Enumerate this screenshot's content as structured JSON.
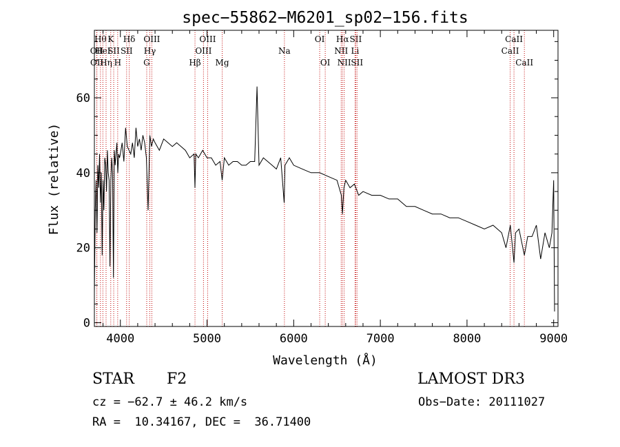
{
  "chart_data": {
    "type": "line",
    "title": "spec−55862−M6201_sp02−156.fits",
    "xlabel": "Wavelength (Å)",
    "ylabel": "Flux (relative)",
    "xlim": [
      3700,
      9050
    ],
    "ylim": [
      -1,
      78
    ],
    "xticks": [
      4000,
      5000,
      6000,
      7000,
      8000,
      9000
    ],
    "yticks": [
      0,
      20,
      40,
      60
    ],
    "grid": false,
    "series": [
      {
        "name": "flux",
        "x": [
          3700,
          3710,
          3720,
          3730,
          3740,
          3750,
          3760,
          3770,
          3780,
          3790,
          3800,
          3810,
          3820,
          3830,
          3840,
          3850,
          3860,
          3870,
          3880,
          3890,
          3900,
          3910,
          3920,
          3930,
          3940,
          3950,
          3960,
          3970,
          3980,
          3990,
          4000,
          4020,
          4040,
          4060,
          4080,
          4100,
          4120,
          4140,
          4160,
          4180,
          4200,
          4220,
          4240,
          4260,
          4280,
          4300,
          4320,
          4340,
          4360,
          4380,
          4400,
          4450,
          4500,
          4550,
          4600,
          4650,
          4700,
          4750,
          4800,
          4850,
          4861,
          4870,
          4900,
          4950,
          5000,
          5050,
          5100,
          5150,
          5175,
          5200,
          5250,
          5300,
          5350,
          5400,
          5450,
          5500,
          5550,
          5577,
          5600,
          5650,
          5700,
          5750,
          5800,
          5850,
          5890,
          5900,
          5950,
          6000,
          6100,
          6200,
          6300,
          6400,
          6500,
          6550,
          6563,
          6580,
          6600,
          6650,
          6700,
          6750,
          6800,
          6900,
          7000,
          7100,
          7200,
          7300,
          7400,
          7500,
          7600,
          7700,
          7800,
          7900,
          8000,
          8100,
          8200,
          8300,
          8400,
          8450,
          8500,
          8542,
          8560,
          8600,
          8662,
          8700,
          8750,
          8800,
          8850,
          8900,
          8950,
          8980,
          9000,
          9010
        ],
        "y": [
          8,
          30,
          38,
          24,
          42,
          36,
          45,
          32,
          40,
          18,
          38,
          30,
          44,
          42,
          35,
          46,
          40,
          38,
          15,
          38,
          44,
          40,
          12,
          46,
          42,
          45,
          48,
          40,
          45,
          44,
          45,
          48,
          43,
          52,
          47,
          46,
          45,
          48,
          44,
          52,
          47,
          49,
          46,
          50,
          48,
          44,
          30,
          50,
          47,
          49,
          48,
          46,
          49,
          48,
          47,
          48,
          47,
          46,
          44,
          45,
          36,
          45,
          44,
          46,
          44,
          44,
          42,
          43,
          38,
          44,
          42,
          43,
          43,
          42,
          42,
          43,
          43,
          63,
          42,
          44,
          43,
          42,
          41,
          44,
          32,
          42,
          44,
          42,
          41,
          40,
          40,
          39,
          38,
          34,
          29,
          36,
          38,
          36,
          37,
          34,
          35,
          34,
          34,
          33,
          33,
          31,
          31,
          30,
          29,
          29,
          28,
          28,
          27,
          26,
          25,
          26,
          24,
          20,
          26,
          16,
          24,
          25,
          18,
          23,
          23,
          26,
          17,
          24,
          20,
          24,
          38,
          3
        ]
      }
    ],
    "line_markers": [
      {
        "wave": 3727,
        "label": "OII",
        "row": 1
      },
      {
        "wave": 3729,
        "label": "OII",
        "row": 2
      },
      {
        "wave": 3770,
        "label": "Hθ",
        "row": 0
      },
      {
        "wave": 3798,
        "label": "HeI",
        "row": 1
      },
      {
        "wave": 3835,
        "label": "Hη",
        "row": 2
      },
      {
        "wave": 3889,
        "label": "K",
        "row": 0
      },
      {
        "wave": 3923,
        "label": "SII",
        "row": 1
      },
      {
        "wave": 3969,
        "label": "H",
        "row": 2
      },
      {
        "wave": 4072,
        "label": "SII",
        "row": 1
      },
      {
        "wave": 4102,
        "label": "Hδ",
        "row": 0
      },
      {
        "wave": 4304,
        "label": "G",
        "row": 2
      },
      {
        "wave": 4340,
        "label": "Hγ",
        "row": 1
      },
      {
        "wave": 4363,
        "label": "OIII",
        "row": 0
      },
      {
        "wave": 4861,
        "label": "Hβ",
        "row": 2
      },
      {
        "wave": 4959,
        "label": "OIII",
        "row": 1
      },
      {
        "wave": 5007,
        "label": "OIII",
        "row": 0
      },
      {
        "wave": 5175,
        "label": "Mg",
        "row": 2
      },
      {
        "wave": 5893,
        "label": "Na",
        "row": 1
      },
      {
        "wave": 6300,
        "label": "OI",
        "row": 0
      },
      {
        "wave": 6364,
        "label": "OI",
        "row": 2
      },
      {
        "wave": 6548,
        "label": "NII",
        "row": 1
      },
      {
        "wave": 6563,
        "label": "Hα",
        "row": 0
      },
      {
        "wave": 6583,
        "label": "NII",
        "row": 2
      },
      {
        "wave": 6708,
        "label": "Li",
        "row": 1
      },
      {
        "wave": 6716,
        "label": "SII",
        "row": 0
      },
      {
        "wave": 6731,
        "label": "SII",
        "row": 2
      },
      {
        "wave": 8498,
        "label": "CaII",
        "row": 1
      },
      {
        "wave": 8542,
        "label": "CaII",
        "row": 0
      },
      {
        "wave": 8662,
        "label": "CaII",
        "row": 2
      }
    ]
  },
  "info": {
    "object_class": "STAR",
    "subclass": "F2",
    "survey": "LAMOST DR3",
    "redshift": "cz = −62.7 ± 46.2 km/s",
    "obs_date": "Obs−Date: 20111027",
    "coords": "RA =  10.34167, DEC =  36.71400"
  },
  "colors": {
    "axis": "#000000",
    "spectrum": "#000000",
    "marker_line": "#c00000"
  }
}
